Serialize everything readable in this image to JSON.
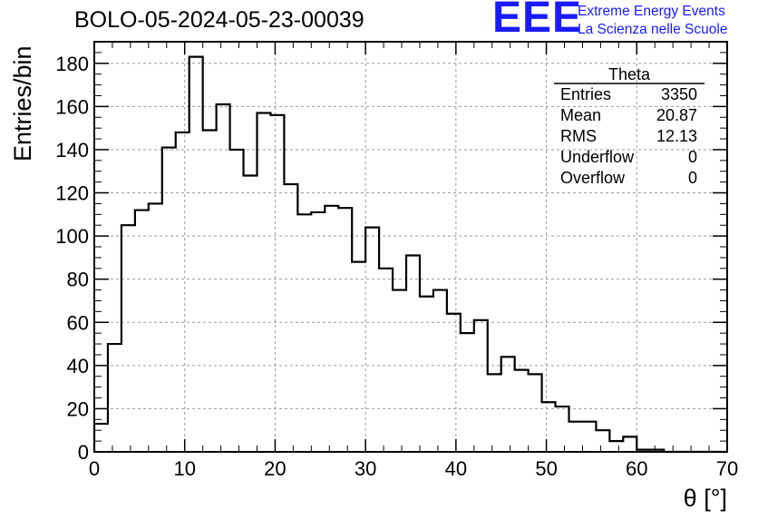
{
  "title": "BOLO-05-2024-05-23-00039",
  "logo": {
    "mark": "EEE",
    "line1": "Extreme Energy Events",
    "line2": "La Scienza nelle Scuole",
    "color": "#1a1aff"
  },
  "stats_box": {
    "name": "Theta",
    "rows": [
      {
        "label": "Entries",
        "value": "3350"
      },
      {
        "label": "Mean",
        "value": "20.87"
      },
      {
        "label": "RMS",
        "value": "12.13"
      },
      {
        "label": "Underflow",
        "value": "0"
      },
      {
        "label": "Overflow",
        "value": "0"
      }
    ]
  },
  "chart_data": {
    "type": "bar",
    "histogram": "step",
    "title": "BOLO-05-2024-05-23-00039",
    "xlabel": "θ [°]",
    "ylabel": "Entries/bin",
    "xlim": [
      0,
      70
    ],
    "ylim": [
      0,
      190
    ],
    "xticks": [
      0,
      10,
      20,
      30,
      40,
      50,
      60,
      70
    ],
    "yticks": [
      0,
      20,
      40,
      60,
      80,
      100,
      120,
      140,
      160,
      180
    ],
    "grid": true,
    "bin_width": 1.5,
    "bin_edges_start": 0,
    "values": [
      13,
      50,
      105,
      112,
      115,
      141,
      148,
      183,
      149,
      161,
      140,
      128,
      157,
      156,
      124,
      110,
      111,
      114,
      113,
      88,
      104,
      85,
      75,
      91,
      72,
      75,
      64,
      55,
      61,
      36,
      44,
      38,
      36,
      23,
      21,
      14,
      14,
      10,
      5,
      7,
      1,
      1,
      0,
      0,
      0,
      0,
      0
    ]
  }
}
